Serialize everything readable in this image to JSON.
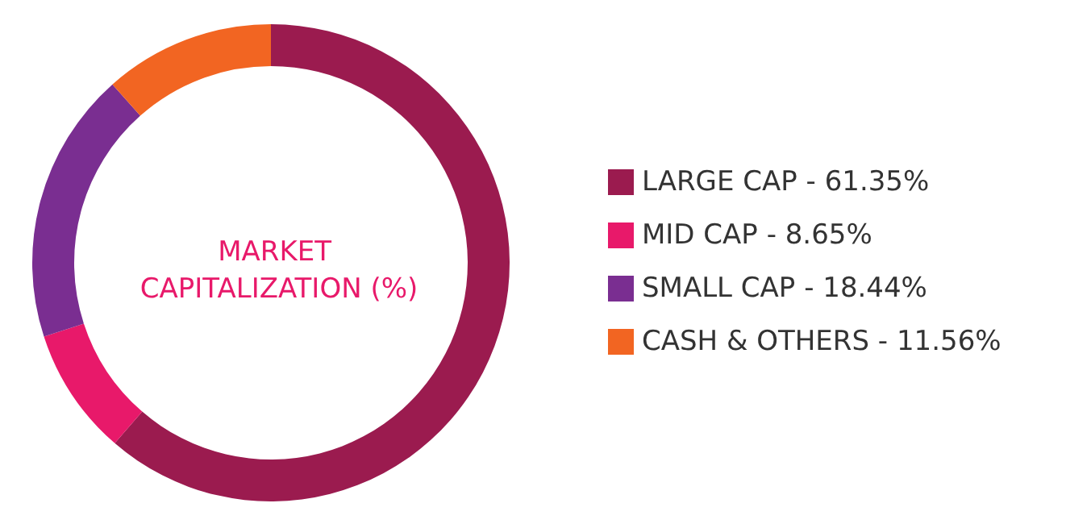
{
  "chart_data": {
    "type": "donut",
    "title": "MARKET CAPITALIZATION (%)",
    "categories": [
      "LARGE CAP",
      "MID CAP",
      "SMALL CAP",
      "CASH & OTHERS"
    ],
    "values": [
      61.35,
      8.65,
      18.44,
      11.56
    ],
    "value_labels": [
      "61.35%",
      "8.65%",
      "18.44%",
      "11.56%"
    ],
    "colors": [
      "#9b1b4f",
      "#e8196a",
      "#7a2e91",
      "#f26522"
    ],
    "legend": "right"
  }
}
